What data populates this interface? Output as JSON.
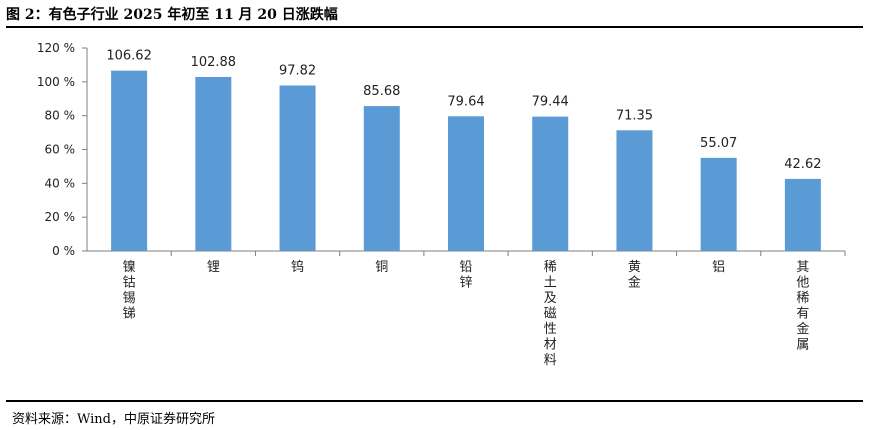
{
  "header": {
    "title": "图 2：有色子行业 2025 年初至 11 月 20 日涨跌幅"
  },
  "footer": {
    "source": "资料来源：Wind，中原证券研究所"
  },
  "colors": {
    "bar": "#5B9BD5",
    "axis": "#7f7f7f"
  },
  "chart_data": {
    "type": "bar",
    "title": "",
    "xlabel": "",
    "ylabel": "",
    "ylim": [
      0,
      120
    ],
    "yticks": [
      "0 %",
      "20 %",
      "40 %",
      "60 %",
      "80 %",
      "100 %",
      "120 %"
    ],
    "grid": false,
    "categories": [
      "镍钴锡锑",
      "锂",
      "钨",
      "铜",
      "铅锌",
      "稀土及磁性材料",
      "黄金",
      "铝",
      "其他稀有金属"
    ],
    "values": [
      106.62,
      102.88,
      97.82,
      85.68,
      79.64,
      79.44,
      71.35,
      55.07,
      42.62
    ],
    "value_labels": [
      "106.62",
      "102.88",
      "97.82",
      "85.68",
      "79.64",
      "79.44",
      "71.35",
      "55.07",
      "42.62"
    ]
  }
}
